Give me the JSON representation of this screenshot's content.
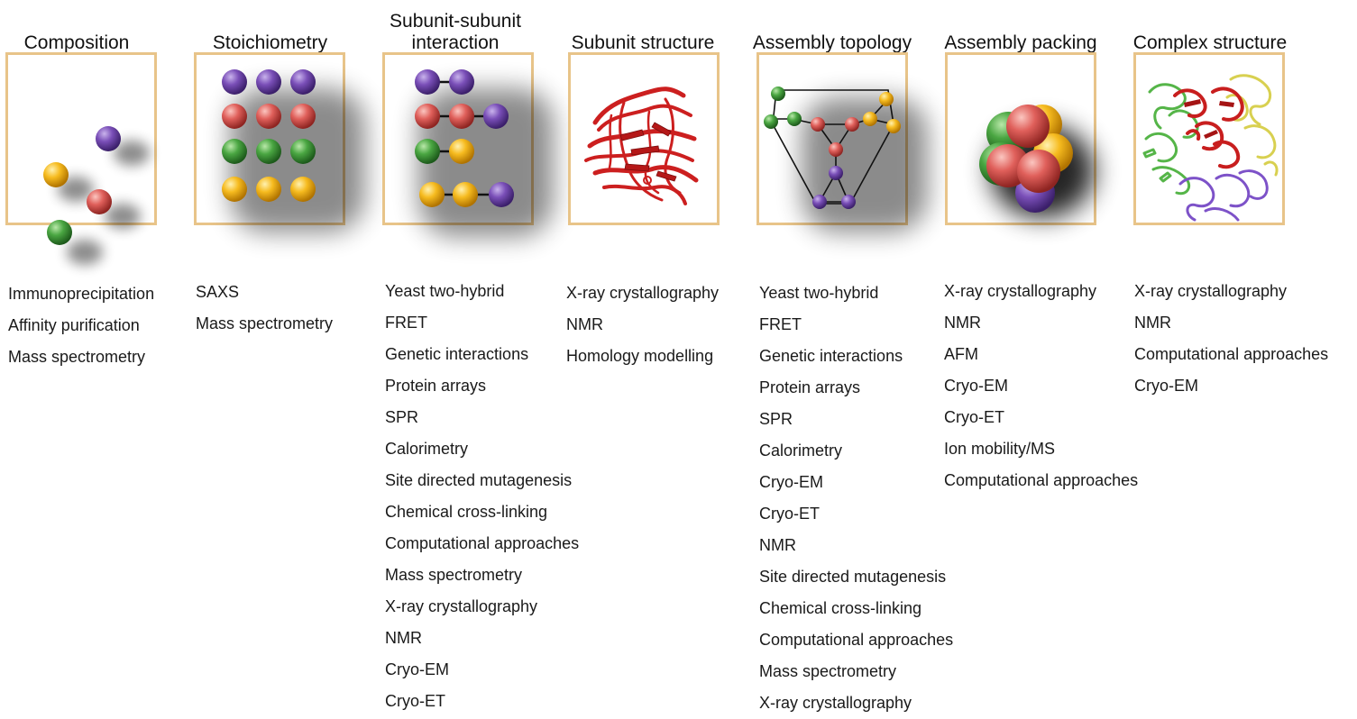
{
  "columns": [
    {
      "title": "Composition",
      "methods": [
        "Immunoprecipitation",
        "Affinity purification",
        "Mass spectrometry"
      ]
    },
    {
      "title": "Stoichiometry",
      "methods": [
        "SAXS",
        "Mass spectrometry"
      ]
    },
    {
      "title": "Subunit-subunit\ninteraction",
      "methods": [
        "Yeast two-hybrid",
        "FRET",
        "Genetic interactions",
        "Protein arrays",
        "SPR",
        "Calorimetry",
        "Site directed mutagenesis",
        "Chemical cross-linking",
        "Computational approaches",
        "Mass spectrometry",
        "X-ray crystallography",
        "NMR",
        "Cryo-EM",
        "Cryo-ET"
      ]
    },
    {
      "title": "Subunit structure",
      "methods": [
        "X-ray crystallography",
        "NMR",
        "Homology modelling"
      ]
    },
    {
      "title": "Assembly topology",
      "methods": [
        "Yeast two-hybrid",
        "FRET",
        "Genetic interactions",
        "Protein arrays",
        "SPR",
        "Calorimetry",
        "Cryo-EM",
        "Cryo-ET",
        "NMR",
        "Site directed mutagenesis",
        "Chemical cross-linking",
        "Computational approaches",
        "Mass spectrometry",
        "X-ray crystallography"
      ]
    },
    {
      "title": "Assembly packing",
      "methods": [
        "X-ray crystallography",
        "NMR",
        "AFM",
        "Cryo-EM",
        "Cryo-ET",
        "Ion mobility/MS",
        "Computational approaches"
      ]
    },
    {
      "title": "Complex structure",
      "methods": [
        "X-ray crystallography",
        "NMR",
        "Computational approaches",
        "Cryo-EM"
      ]
    }
  ],
  "colors": {
    "panel_border": "#e8c489",
    "subunit_purple": "#6a3fa0",
    "subunit_red": "#d9514e",
    "subunit_green": "#3d9a3a",
    "subunit_yellow": "#f2b21a",
    "ribbon_red": "#cc1f1f"
  }
}
